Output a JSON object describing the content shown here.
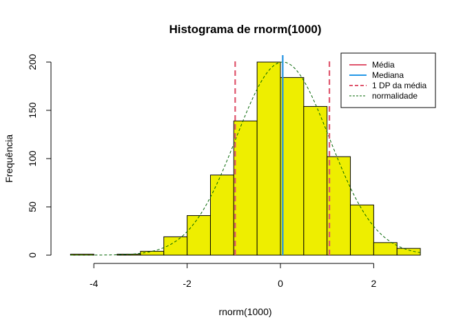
{
  "chart_data": {
    "type": "histogram",
    "title": "Histograma de rnorm(1000)",
    "xlabel": "rnorm(1000)",
    "ylabel": "Frequência",
    "x_ticks": [
      -4,
      -2,
      0,
      2
    ],
    "y_ticks": [
      0,
      50,
      100,
      150,
      200
    ],
    "xlim": [
      -4.5,
      3.0
    ],
    "ylim": [
      0,
      200
    ],
    "bins": [
      {
        "start": -4.5,
        "end": -4.0,
        "count": 1
      },
      {
        "start": -4.0,
        "end": -3.5,
        "count": 0
      },
      {
        "start": -3.5,
        "end": -3.0,
        "count": 1
      },
      {
        "start": -3.0,
        "end": -2.5,
        "count": 4
      },
      {
        "start": -2.5,
        "end": -2.0,
        "count": 19
      },
      {
        "start": -2.0,
        "end": -1.5,
        "count": 41
      },
      {
        "start": -1.5,
        "end": -1.0,
        "count": 83
      },
      {
        "start": -1.0,
        "end": -0.5,
        "count": 139
      },
      {
        "start": -0.5,
        "end": 0.0,
        "count": 200
      },
      {
        "start": 0.0,
        "end": 0.5,
        "count": 184
      },
      {
        "start": 0.5,
        "end": 1.0,
        "count": 154
      },
      {
        "start": 1.0,
        "end": 1.5,
        "count": 102
      },
      {
        "start": 1.5,
        "end": 2.0,
        "count": 52
      },
      {
        "start": 2.0,
        "end": 2.5,
        "count": 13
      },
      {
        "start": 2.5,
        "end": 3.0,
        "count": 7
      }
    ],
    "bar_color": "#EEEE00",
    "mean": 0.05,
    "median": 0.05,
    "sd_lines": [
      -0.97,
      1.05
    ],
    "normal_curve": {
      "mean": 0.05,
      "sd": 1.0,
      "peak": 200
    },
    "legend": {
      "position": "top-right",
      "items": [
        {
          "label": "Média",
          "color": "#DF536B",
          "style": "solid"
        },
        {
          "label": "Mediana",
          "color": "#2297E6",
          "style": "solid"
        },
        {
          "label": "1 DP da média",
          "color": "#DF536B",
          "style": "dashed"
        },
        {
          "label": "normalidade",
          "color": "#006400",
          "style": "dashed"
        }
      ]
    }
  }
}
